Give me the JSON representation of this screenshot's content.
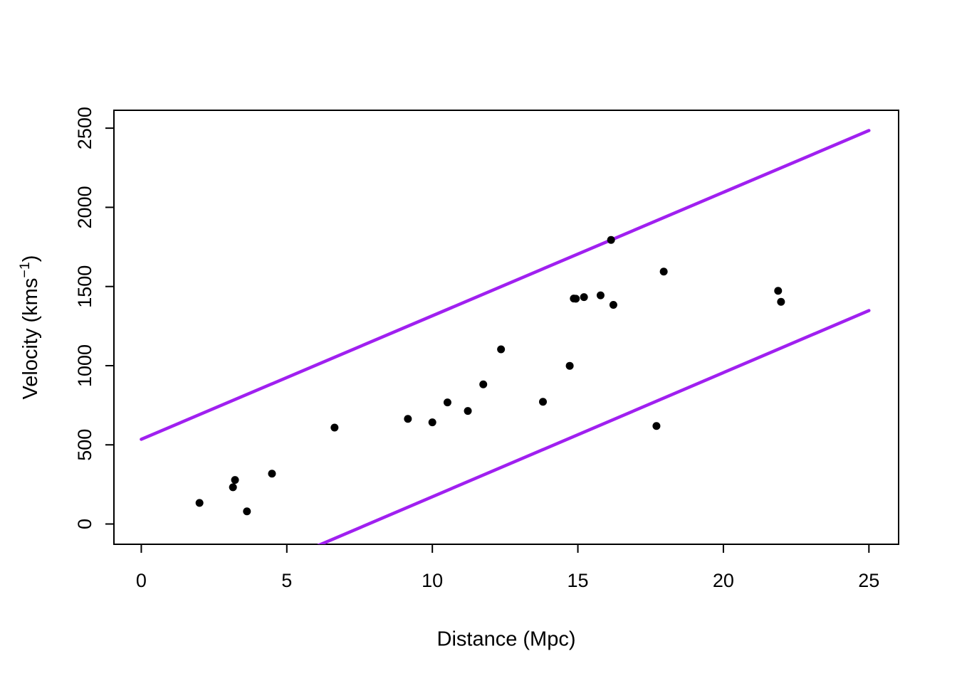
{
  "page": {
    "background": "#ffffff"
  },
  "chart_data": {
    "type": "scatter",
    "xlabel": "Distance (Mpc)",
    "ylabel_text": "Velocity (kms",
    "ylabel_sup": "−1",
    "ylabel_end": ")",
    "xticks": [
      0,
      5,
      10,
      15,
      20,
      25
    ],
    "yticks": [
      0,
      500,
      1000,
      1500,
      2000,
      2500
    ],
    "xlim": [
      -0.94,
      26.02
    ],
    "ylim": [
      -128,
      2613
    ],
    "grid": false,
    "legend": "none",
    "axis_color": "#000000",
    "point_color": "#000000",
    "line_color": "#A020F0",
    "points": [
      [
        2.0,
        133
      ],
      [
        3.15,
        232
      ],
      [
        3.22,
        278
      ],
      [
        3.63,
        80
      ],
      [
        4.49,
        318
      ],
      [
        6.64,
        609
      ],
      [
        9.16,
        664
      ],
      [
        10.0,
        642
      ],
      [
        10.52,
        768
      ],
      [
        11.22,
        714
      ],
      [
        11.75,
        882
      ],
      [
        12.36,
        1103
      ],
      [
        13.8,
        772
      ],
      [
        14.72,
        999
      ],
      [
        14.86,
        1424
      ],
      [
        14.93,
        1423
      ],
      [
        15.21,
        1433
      ],
      [
        15.78,
        1444
      ],
      [
        16.14,
        1794
      ],
      [
        16.22,
        1384
      ],
      [
        17.7,
        619
      ],
      [
        17.95,
        1594
      ],
      [
        21.88,
        1473
      ],
      [
        21.98,
        1403
      ]
    ],
    "lines": [
      {
        "name": "upper-band-line",
        "points": [
          [
            0,
            535
          ],
          [
            25,
            2485
          ]
        ]
      },
      {
        "name": "lower-band-line",
        "points": [
          [
            0,
            -612
          ],
          [
            25,
            1348
          ]
        ]
      }
    ]
  }
}
